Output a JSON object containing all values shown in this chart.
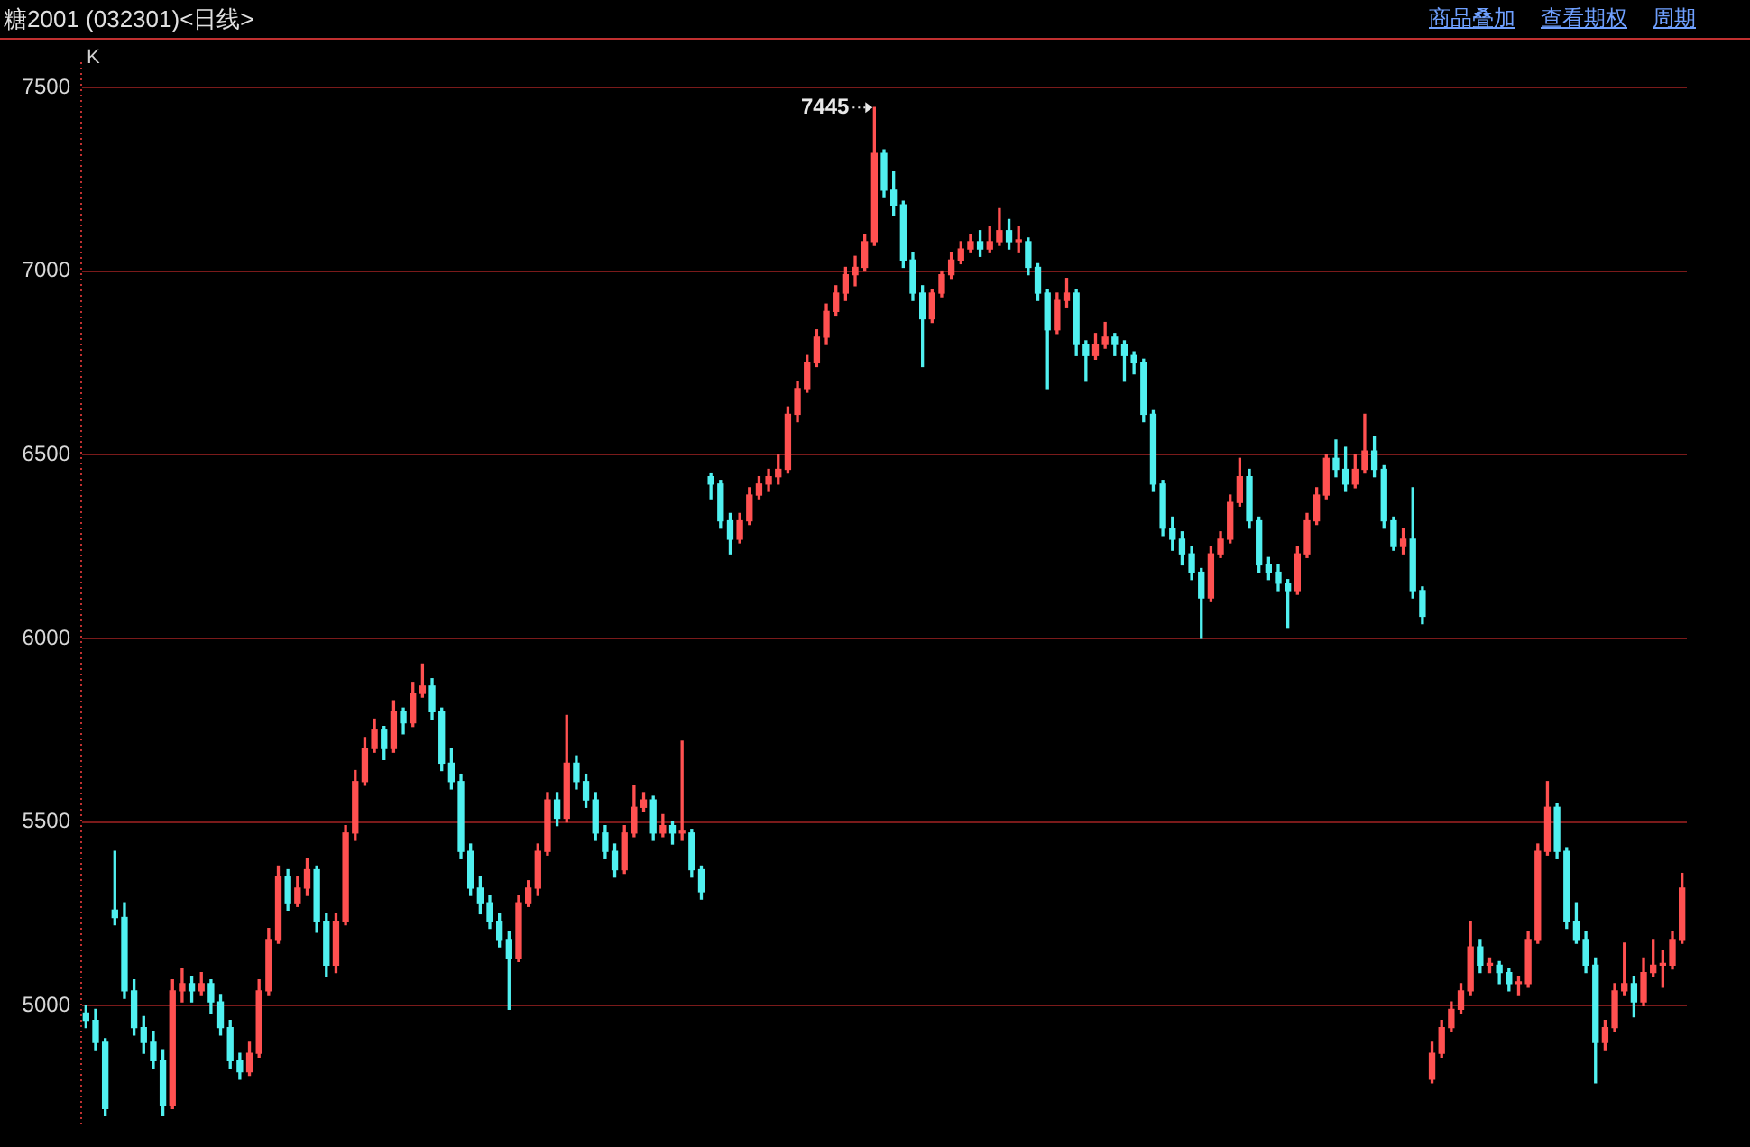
{
  "chart_data": {
    "type": "candlestick",
    "title": "糖2001 (032301)<日线>",
    "annotations": [
      "K",
      "7445",
      "商品叠加",
      "查看期权",
      "周期"
    ],
    "categories": [
      null,
      null,
      null,
      null,
      null,
      null,
      null,
      null,
      null,
      null,
      null,
      null,
      null,
      null,
      null,
      null,
      null,
      null,
      null,
      null,
      null,
      null,
      null,
      null,
      null,
      null,
      null,
      null,
      null,
      null,
      null,
      null,
      null,
      null,
      null,
      null,
      null,
      null,
      null,
      null,
      null,
      null,
      null,
      null,
      null,
      null,
      null,
      null,
      null,
      null,
      null,
      null,
      null,
      null,
      null,
      null,
      null,
      null,
      null,
      null,
      null,
      null,
      null,
      null,
      null,
      null,
      null,
      null,
      null,
      null,
      null,
      null,
      null,
      null,
      null,
      null,
      null,
      null,
      null,
      null,
      null,
      null,
      null,
      null,
      null,
      null,
      null,
      null,
      null,
      null,
      null,
      null,
      null,
      null,
      null,
      null,
      null,
      null,
      null,
      null,
      null,
      null,
      null,
      null,
      null,
      null,
      null,
      null,
      null,
      null,
      null,
      null,
      null,
      null,
      null,
      null,
      null,
      null,
      null,
      null,
      null,
      null,
      null,
      null,
      null,
      null,
      null,
      null,
      null,
      null,
      null,
      null,
      null,
      null,
      null,
      null,
      null,
      null,
      null,
      null,
      null,
      null,
      null,
      null,
      null,
      null,
      null,
      null,
      null,
      null,
      null,
      null,
      null,
      null,
      null,
      null,
      null,
      null,
      null,
      null,
      null,
      null,
      null,
      null,
      null,
      null,
      null
    ],
    "ohlc": [
      [
        4980,
        5000,
        4940,
        4960
      ],
      [
        4960,
        4990,
        4880,
        4900
      ],
      [
        4900,
        4910,
        4700,
        4720
      ],
      [
        5260,
        5420,
        5220,
        5240
      ],
      [
        5240,
        5280,
        5020,
        5040
      ],
      [
        5040,
        5070,
        4920,
        4940
      ],
      [
        4940,
        4970,
        4870,
        4900
      ],
      [
        4900,
        4930,
        4830,
        4850
      ],
      [
        4850,
        4880,
        4700,
        4730
      ],
      [
        4730,
        5070,
        4720,
        5040
      ],
      [
        5040,
        5100,
        5010,
        5060
      ],
      [
        5060,
        5080,
        5010,
        5040
      ],
      [
        5040,
        5090,
        5030,
        5060
      ],
      [
        5060,
        5070,
        4980,
        5010
      ],
      [
        5010,
        5030,
        4920,
        4940
      ],
      [
        4940,
        4960,
        4830,
        4850
      ],
      [
        4850,
        4870,
        4800,
        4820
      ],
      [
        4820,
        4900,
        4810,
        4870
      ],
      [
        4870,
        5070,
        4860,
        5040
      ],
      [
        5040,
        5210,
        5030,
        5180
      ],
      [
        5180,
        5380,
        5170,
        5350
      ],
      [
        5350,
        5370,
        5260,
        5280
      ],
      [
        5280,
        5350,
        5270,
        5320
      ],
      [
        5320,
        5400,
        5300,
        5370
      ],
      [
        5370,
        5380,
        5200,
        5230
      ],
      [
        5230,
        5250,
        5080,
        5110
      ],
      [
        5110,
        5250,
        5090,
        5230
      ],
      [
        5230,
        5490,
        5220,
        5470
      ],
      [
        5470,
        5640,
        5450,
        5610
      ],
      [
        5610,
        5730,
        5600,
        5700
      ],
      [
        5700,
        5780,
        5690,
        5750
      ],
      [
        5750,
        5760,
        5670,
        5700
      ],
      [
        5700,
        5830,
        5690,
        5800
      ],
      [
        5800,
        5810,
        5740,
        5770
      ],
      [
        5770,
        5880,
        5760,
        5850
      ],
      [
        5850,
        5930,
        5840,
        5870
      ],
      [
        5870,
        5890,
        5780,
        5800
      ],
      [
        5800,
        5810,
        5640,
        5660
      ],
      [
        5660,
        5700,
        5590,
        5610
      ],
      [
        5610,
        5630,
        5400,
        5420
      ],
      [
        5420,
        5440,
        5300,
        5320
      ],
      [
        5320,
        5350,
        5250,
        5280
      ],
      [
        5280,
        5300,
        5210,
        5230
      ],
      [
        5230,
        5250,
        5160,
        5180
      ],
      [
        5180,
        5200,
        4990,
        5130
      ],
      [
        5130,
        5300,
        5120,
        5280
      ],
      [
        5280,
        5340,
        5270,
        5320
      ],
      [
        5320,
        5440,
        5300,
        5420
      ],
      [
        5420,
        5580,
        5410,
        5560
      ],
      [
        5560,
        5580,
        5490,
        5510
      ],
      [
        5510,
        5790,
        5500,
        5660
      ],
      [
        5660,
        5680,
        5590,
        5610
      ],
      [
        5610,
        5630,
        5540,
        5560
      ],
      [
        5560,
        5580,
        5450,
        5470
      ],
      [
        5470,
        5490,
        5400,
        5420
      ],
      [
        5420,
        5440,
        5350,
        5370
      ],
      [
        5370,
        5490,
        5360,
        5470
      ],
      [
        5470,
        5600,
        5460,
        5540
      ],
      [
        5540,
        5580,
        5530,
        5560
      ],
      [
        5560,
        5570,
        5450,
        5470
      ],
      [
        5470,
        5520,
        5460,
        5490
      ],
      [
        5490,
        5500,
        5440,
        5470
      ],
      [
        5470,
        5720,
        5450,
        5470
      ],
      [
        5470,
        5480,
        5350,
        5370
      ],
      [
        5370,
        5380,
        5290,
        5310
      ],
      [
        6440,
        6450,
        6380,
        6420
      ],
      [
        6420,
        6430,
        6300,
        6320
      ],
      [
        6320,
        6340,
        6230,
        6270
      ],
      [
        6270,
        6340,
        6260,
        6320
      ],
      [
        6320,
        6410,
        6310,
        6390
      ],
      [
        6390,
        6440,
        6380,
        6420
      ],
      [
        6420,
        6460,
        6400,
        6440
      ],
      [
        6440,
        6500,
        6420,
        6460
      ],
      [
        6460,
        6630,
        6450,
        6610
      ],
      [
        6610,
        6700,
        6590,
        6680
      ],
      [
        6680,
        6770,
        6670,
        6750
      ],
      [
        6750,
        6840,
        6740,
        6820
      ],
      [
        6820,
        6910,
        6800,
        6890
      ],
      [
        6890,
        6960,
        6880,
        6940
      ],
      [
        6940,
        7010,
        6920,
        6990
      ],
      [
        6990,
        7040,
        6960,
        7010
      ],
      [
        7010,
        7100,
        7000,
        7080
      ],
      [
        7080,
        7445,
        7070,
        7320
      ],
      [
        7320,
        7330,
        7200,
        7220
      ],
      [
        7220,
        7270,
        7150,
        7180
      ],
      [
        7180,
        7190,
        7010,
        7030
      ],
      [
        7030,
        7050,
        6920,
        6940
      ],
      [
        6940,
        6960,
        6740,
        6870
      ],
      [
        6870,
        6950,
        6860,
        6940
      ],
      [
        6940,
        7000,
        6930,
        6990
      ],
      [
        6990,
        7050,
        6980,
        7030
      ],
      [
        7030,
        7080,
        7020,
        7060
      ],
      [
        7060,
        7100,
        7050,
        7080
      ],
      [
        7080,
        7110,
        7040,
        7060
      ],
      [
        7060,
        7120,
        7050,
        7080
      ],
      [
        7080,
        7170,
        7070,
        7110
      ],
      [
        7110,
        7140,
        7060,
        7080
      ],
      [
        7080,
        7120,
        7050,
        7080
      ],
      [
        7080,
        7090,
        6990,
        7010
      ],
      [
        7010,
        7020,
        6920,
        6940
      ],
      [
        6940,
        6950,
        6680,
        6840
      ],
      [
        6840,
        6940,
        6830,
        6920
      ],
      [
        6920,
        6980,
        6900,
        6940
      ],
      [
        6940,
        6950,
        6770,
        6800
      ],
      [
        6800,
        6810,
        6700,
        6770
      ],
      [
        6770,
        6830,
        6760,
        6800
      ],
      [
        6800,
        6860,
        6790,
        6820
      ],
      [
        6820,
        6830,
        6770,
        6800
      ],
      [
        6800,
        6810,
        6700,
        6770
      ],
      [
        6770,
        6780,
        6720,
        6750
      ],
      [
        6750,
        6760,
        6590,
        6610
      ],
      [
        6610,
        6620,
        6400,
        6420
      ],
      [
        6420,
        6430,
        6280,
        6300
      ],
      [
        6300,
        6330,
        6240,
        6270
      ],
      [
        6270,
        6290,
        6200,
        6230
      ],
      [
        6230,
        6250,
        6160,
        6180
      ],
      [
        6180,
        6190,
        6000,
        6110
      ],
      [
        6110,
        6250,
        6100,
        6230
      ],
      [
        6230,
        6290,
        6220,
        6270
      ],
      [
        6270,
        6390,
        6260,
        6370
      ],
      [
        6370,
        6490,
        6360,
        6440
      ],
      [
        6440,
        6460,
        6300,
        6320
      ],
      [
        6320,
        6330,
        6180,
        6200
      ],
      [
        6200,
        6220,
        6160,
        6180
      ],
      [
        6180,
        6200,
        6130,
        6150
      ],
      [
        6150,
        6160,
        6030,
        6130
      ],
      [
        6130,
        6250,
        6120,
        6230
      ],
      [
        6230,
        6340,
        6220,
        6320
      ],
      [
        6320,
        6410,
        6310,
        6390
      ],
      [
        6390,
        6500,
        6380,
        6490
      ],
      [
        6490,
        6540,
        6440,
        6460
      ],
      [
        6460,
        6520,
        6400,
        6420
      ],
      [
        6420,
        6500,
        6410,
        6460
      ],
      [
        6460,
        6610,
        6450,
        6510
      ],
      [
        6510,
        6550,
        6440,
        6460
      ],
      [
        6460,
        6470,
        6300,
        6320
      ],
      [
        6320,
        6330,
        6240,
        6250
      ],
      [
        6250,
        6300,
        6230,
        6270
      ],
      [
        6270,
        6410,
        6110,
        6130
      ],
      [
        6130,
        6140,
        6040,
        6060
      ],
      [
        4800,
        4900,
        4790,
        4870
      ],
      [
        4870,
        4960,
        4860,
        4940
      ],
      [
        4940,
        5010,
        4930,
        4990
      ],
      [
        4990,
        5060,
        4980,
        5040
      ],
      [
        5040,
        5230,
        5030,
        5160
      ],
      [
        5160,
        5180,
        5090,
        5110
      ],
      [
        5110,
        5130,
        5090,
        5110
      ],
      [
        5110,
        5120,
        5060,
        5090
      ],
      [
        5090,
        5100,
        5040,
        5060
      ],
      [
        5060,
        5080,
        5030,
        5060
      ],
      [
        5060,
        5200,
        5050,
        5180
      ],
      [
        5180,
        5440,
        5170,
        5420
      ],
      [
        5420,
        5610,
        5410,
        5540
      ],
      [
        5540,
        5550,
        5400,
        5420
      ],
      [
        5420,
        5430,
        5210,
        5230
      ],
      [
        5230,
        5280,
        5170,
        5180
      ],
      [
        5180,
        5200,
        5090,
        5110
      ],
      [
        5110,
        5130,
        4790,
        4900
      ],
      [
        4900,
        4960,
        4880,
        4940
      ],
      [
        4940,
        5060,
        4930,
        5040
      ],
      [
        5040,
        5170,
        5030,
        5060
      ],
      [
        5060,
        5080,
        4970,
        5010
      ],
      [
        5010,
        5130,
        5000,
        5090
      ],
      [
        5090,
        5180,
        5080,
        5110
      ],
      [
        5110,
        5150,
        5050,
        5110
      ],
      [
        5110,
        5200,
        5100,
        5180
      ],
      [
        5180,
        5360,
        5170,
        5320
      ]
    ],
    "colors": [
      "#50f0f0",
      "#50f0f0",
      "#50f0f0",
      "#50f0f0",
      "#50f0f0",
      "#50f0f0",
      "#50f0f0",
      "#50f0f0",
      "#50f0f0",
      "#ff5050",
      "#ff5050",
      "#50f0f0",
      "#ff5050",
      "#50f0f0",
      "#50f0f0",
      "#50f0f0",
      "#50f0f0",
      "#ff5050",
      "#ff5050",
      "#ff5050",
      "#ff5050",
      "#50f0f0",
      "#ff5050",
      "#ff5050",
      "#50f0f0",
      "#50f0f0",
      "#ff5050",
      "#ff5050",
      "#ff5050",
      "#ff5050",
      "#ff5050",
      "#50f0f0",
      "#ff5050",
      "#50f0f0",
      "#ff5050",
      "#ff5050",
      "#50f0f0",
      "#50f0f0",
      "#50f0f0",
      "#50f0f0",
      "#50f0f0",
      "#50f0f0",
      "#50f0f0",
      "#50f0f0",
      "#50f0f0",
      "#ff5050",
      "#ff5050",
      "#ff5050",
      "#ff5050",
      "#50f0f0",
      "#ff5050",
      "#50f0f0",
      "#50f0f0",
      "#50f0f0",
      "#50f0f0",
      "#50f0f0",
      "#ff5050",
      "#ff5050",
      "#ff5050",
      "#50f0f0",
      "#ff5050",
      "#50f0f0",
      "#ff5050",
      "#50f0f0",
      "#50f0f0",
      "#50f0f0",
      "#50f0f0",
      "#50f0f0",
      "#ff5050",
      "#ff5050",
      "#ff5050",
      "#ff5050",
      "#ff5050",
      "#ff5050",
      "#ff5050",
      "#ff5050",
      "#ff5050",
      "#ff5050",
      "#ff5050",
      "#ff5050",
      "#ff5050",
      "#ff5050",
      "#ff5050",
      "#50f0f0",
      "#50f0f0",
      "#50f0f0",
      "#50f0f0",
      "#50f0f0",
      "#ff5050",
      "#ff5050",
      "#ff5050",
      "#ff5050",
      "#ff5050",
      "#50f0f0",
      "#ff5050",
      "#ff5050",
      "#50f0f0",
      "#ff5050",
      "#50f0f0",
      "#50f0f0",
      "#50f0f0",
      "#ff5050",
      "#ff5050",
      "#50f0f0",
      "#50f0f0",
      "#ff5050",
      "#ff5050",
      "#50f0f0",
      "#50f0f0",
      "#50f0f0",
      "#50f0f0",
      "#50f0f0",
      "#50f0f0",
      "#50f0f0",
      "#50f0f0",
      "#50f0f0",
      "#50f0f0",
      "#ff5050",
      "#ff5050",
      "#ff5050",
      "#ff5050",
      "#50f0f0",
      "#50f0f0",
      "#50f0f0",
      "#50f0f0",
      "#50f0f0",
      "#ff5050",
      "#ff5050",
      "#ff5050",
      "#ff5050",
      "#50f0f0",
      "#50f0f0",
      "#ff5050",
      "#ff5050",
      "#50f0f0",
      "#50f0f0",
      "#50f0f0",
      "#ff5050",
      "#50f0f0",
      "#50f0f0",
      "#ff5050",
      "#ff5050",
      "#ff5050",
      "#ff5050",
      "#ff5050",
      "#50f0f0",
      "#ff5050",
      "#50f0f0",
      "#50f0f0",
      "#ff5050",
      "#ff5050",
      "#ff5050",
      "#ff5050",
      "#50f0f0",
      "#50f0f0",
      "#50f0f0",
      "#50f0f0",
      "#50f0f0",
      "#ff5050",
      "#ff5050",
      "#ff5050",
      "#50f0f0",
      "#ff5050",
      "#ff5050",
      "#ff5050",
      "#ff5050",
      "#ff5050"
    ],
    "ylim": [
      4680,
      7565
    ],
    "yticks": [
      5000,
      5500,
      6000,
      6500,
      7000,
      7500
    ],
    "grid": "y",
    "legend": false
  }
}
